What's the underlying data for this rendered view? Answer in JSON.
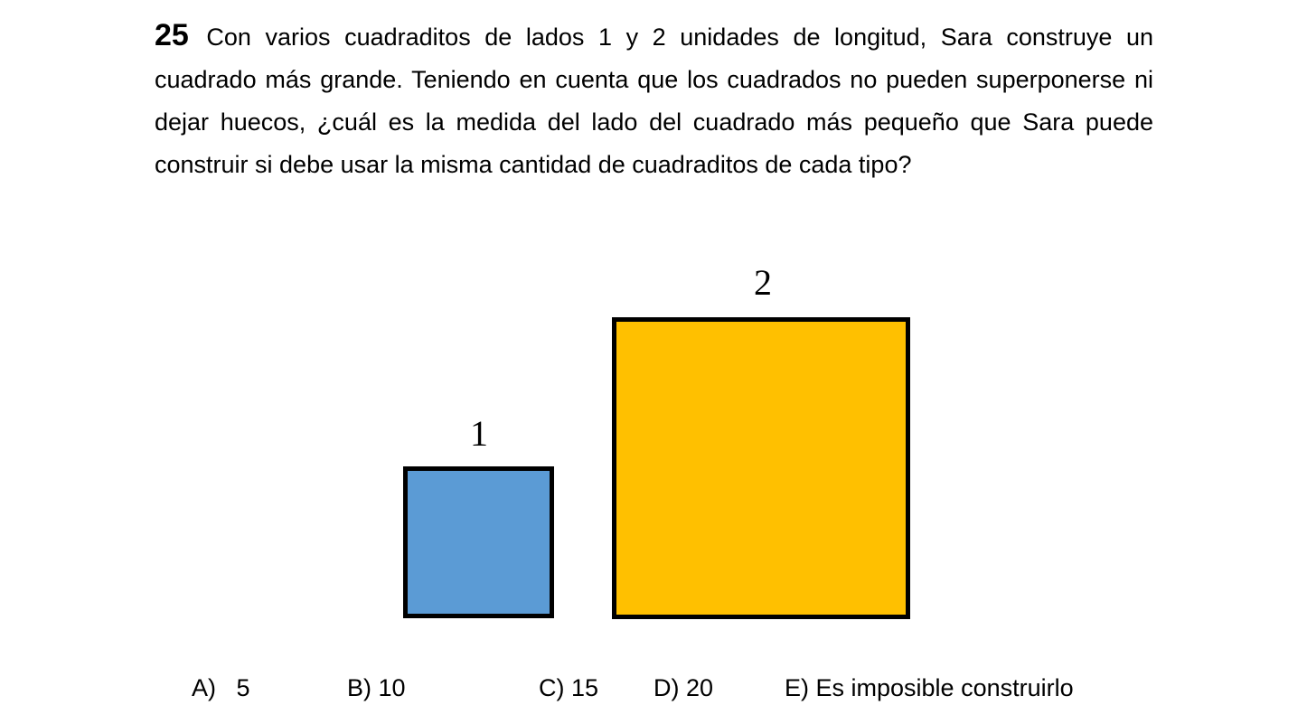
{
  "question": {
    "number": "25",
    "text": "Con varios cuadraditos de lados 1 y 2 unidades de longitud, Sara construye un cuadrado más grande. Teniendo en cuenta que los cuadrados no pueden superponerse ni dejar huecos, ¿cuál es la medida del lado del cuadrado más pequeño que Sara puede construir si debe usar la misma cantidad de cuadraditos de cada tipo?"
  },
  "figure": {
    "small_square": {
      "label": "1",
      "color": "#5B9BD5"
    },
    "big_square": {
      "label": "2",
      "color": "#FFC000"
    }
  },
  "options": [
    {
      "letter": "A)",
      "text": "   5"
    },
    {
      "letter": "B)",
      "text": " 10"
    },
    {
      "letter": "C)",
      "text": " 15"
    },
    {
      "letter": "D)",
      "text": " 20"
    },
    {
      "letter": "E)",
      "text": " Es imposible construirlo"
    }
  ]
}
